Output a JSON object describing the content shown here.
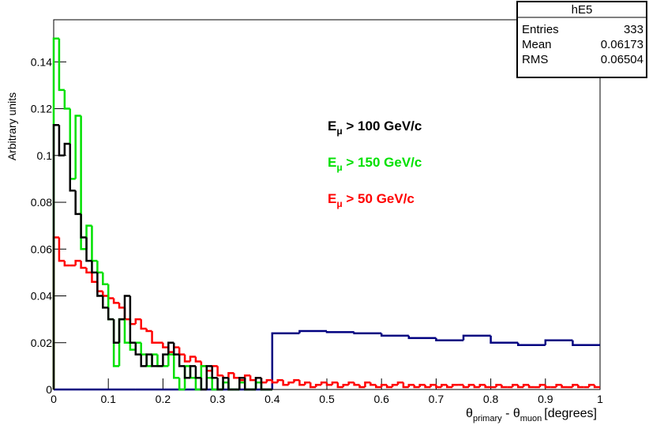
{
  "chart_data": {
    "type": "histogram",
    "y_label": "Arbitrary units",
    "x_label": {
      "theta1": "θ",
      "sub1": "primary",
      "mid": " - θ",
      "sub2": "muon",
      "unit": "[degrees]"
    },
    "xlim": [
      0,
      1
    ],
    "xticks": [
      0,
      0.1,
      0.2,
      0.3,
      0.4,
      0.5,
      0.6,
      0.7,
      0.8,
      0.9,
      1
    ],
    "ylim": [
      0,
      0.158
    ],
    "yticks": [
      0,
      0.02,
      0.04,
      0.06,
      0.08,
      0.1,
      0.12,
      0.14
    ],
    "stats": {
      "title": "hE5",
      "rows": [
        [
          "Entries",
          "333"
        ],
        [
          "Mean",
          "0.06173"
        ],
        [
          "RMS",
          "0.06504"
        ]
      ]
    },
    "legend": [
      {
        "main": "E",
        "sub": "μ",
        "rest": " > 100 GeV/c",
        "color": "#000000"
      },
      {
        "main": "E",
        "sub": "μ",
        "rest": " > 150 GeV/c",
        "color": "#00e000"
      },
      {
        "main": "E",
        "sub": "μ",
        "rest": " > 50 GeV/c",
        "color": "#ff0000"
      }
    ],
    "series": [
      {
        "color": "#000080",
        "bins": [
          0,
          0.05,
          0.1,
          0.15,
          0.2,
          0.25,
          0.3,
          0.35,
          0.4,
          0.45,
          0.5,
          0.55,
          0.6,
          0.65,
          0.7,
          0.75,
          0.8,
          0.85,
          0.9,
          0.95,
          1
        ],
        "values": [
          0,
          0,
          0,
          0,
          0,
          0,
          0,
          0,
          0.024,
          0.025,
          0.0245,
          0.024,
          0.023,
          0.022,
          0.021,
          0.023,
          0.02,
          0.019,
          0.021,
          0.019
        ]
      },
      {
        "color": "#ff0000",
        "bins": [
          0,
          0.01,
          0.02,
          0.03,
          0.04,
          0.05,
          0.06,
          0.07,
          0.08,
          0.09,
          0.1,
          0.11,
          0.12,
          0.13,
          0.14,
          0.15,
          0.16,
          0.17,
          0.18,
          0.19,
          0.2,
          0.21,
          0.22,
          0.23,
          0.24,
          0.25,
          0.26,
          0.27,
          0.28,
          0.29,
          0.3,
          0.31,
          0.32,
          0.33,
          0.34,
          0.35,
          0.36,
          0.37,
          0.38,
          0.39,
          0.4,
          0.41,
          0.42,
          0.43,
          0.44,
          0.45,
          0.46,
          0.47,
          0.48,
          0.49,
          0.5,
          0.51,
          0.52,
          0.53,
          0.54,
          0.55,
          0.56,
          0.57,
          0.58,
          0.59,
          0.6,
          0.61,
          0.62,
          0.63,
          0.64,
          0.65,
          0.66,
          0.67,
          0.68,
          0.69,
          0.7,
          0.71,
          0.72,
          0.73,
          0.74,
          0.75,
          0.76,
          0.77,
          0.78,
          0.79,
          0.8,
          0.81,
          0.82,
          0.83,
          0.84,
          0.85,
          0.86,
          0.87,
          0.88,
          0.89,
          0.9,
          0.91,
          0.92,
          0.93,
          0.94,
          0.95,
          0.96,
          0.97,
          0.98,
          0.99,
          1
        ],
        "values": [
          0.065,
          0.055,
          0.053,
          0.053,
          0.055,
          0.052,
          0.05,
          0.046,
          0.042,
          0.04,
          0.039,
          0.037,
          0.035,
          0.03,
          0.028,
          0.03,
          0.026,
          0.025,
          0.02,
          0.02,
          0.018,
          0.016,
          0.018,
          0.015,
          0.012,
          0.014,
          0.012,
          0.01,
          0.008,
          0.01,
          0.006,
          0.005,
          0.007,
          0.005,
          0.004,
          0.006,
          0.004,
          0.005,
          0.003,
          0.004,
          0.003,
          0.004,
          0.002,
          0.003,
          0.004,
          0.002,
          0.003,
          0.001,
          0.002,
          0.003,
          0.002,
          0.003,
          0.001,
          0.002,
          0.003,
          0.002,
          0.001,
          0.003,
          0.002,
          0.001,
          0.002,
          0.001,
          0.002,
          0.003,
          0.001,
          0.002,
          0.001,
          0.002,
          0.001,
          0.002,
          0.001,
          0.002,
          0.001,
          0.002,
          0.002,
          0.001,
          0.002,
          0.001,
          0.002,
          0.001,
          0.001,
          0.002,
          0.001,
          0.001,
          0.002,
          0.001,
          0.002,
          0.001,
          0.001,
          0.002,
          0.001,
          0.001,
          0.002,
          0.001,
          0.001,
          0.002,
          0.001,
          0.001,
          0.002,
          0.001
        ]
      },
      {
        "color": "#00e000",
        "bins": [
          0,
          0.01,
          0.02,
          0.03,
          0.04,
          0.05,
          0.06,
          0.07,
          0.08,
          0.09,
          0.1,
          0.11,
          0.12,
          0.13,
          0.14,
          0.15,
          0.16,
          0.17,
          0.18,
          0.19,
          0.2,
          0.21,
          0.22,
          0.23,
          0.24,
          0.25,
          0.26,
          0.27,
          0.28,
          0.29,
          0.3,
          0.31,
          0.32,
          0.33,
          0.34,
          0.35,
          0.36,
          0.37,
          0.38,
          0.39,
          0.4
        ],
        "values": [
          0.15,
          0.128,
          0.12,
          0.09,
          0.117,
          0.06,
          0.07,
          0.055,
          0.05,
          0.045,
          0.03,
          0.01,
          0.03,
          0.02,
          0.017,
          0.02,
          0.015,
          0.01,
          0.015,
          0.01,
          0.01,
          0.015,
          0.005,
          0,
          0.01,
          0.005,
          0,
          0.01,
          0.005,
          0,
          0,
          0.003,
          0,
          0,
          0.003,
          0,
          0,
          0.003,
          0,
          0
        ]
      },
      {
        "color": "#000000",
        "bins": [
          0,
          0.01,
          0.02,
          0.03,
          0.04,
          0.05,
          0.06,
          0.07,
          0.08,
          0.09,
          0.1,
          0.11,
          0.12,
          0.13,
          0.14,
          0.15,
          0.16,
          0.17,
          0.18,
          0.19,
          0.2,
          0.21,
          0.22,
          0.23,
          0.24,
          0.25,
          0.26,
          0.27,
          0.28,
          0.29,
          0.3,
          0.31,
          0.32,
          0.33,
          0.34,
          0.35,
          0.36,
          0.37,
          0.38,
          0.39,
          0.4
        ],
        "values": [
          0.113,
          0.1,
          0.105,
          0.085,
          0.075,
          0.065,
          0.055,
          0.05,
          0.04,
          0.035,
          0.03,
          0.02,
          0.03,
          0.04,
          0.02,
          0.015,
          0.01,
          0.015,
          0.01,
          0.01,
          0.015,
          0.02,
          0.015,
          0.01,
          0.005,
          0.01,
          0.005,
          0,
          0.01,
          0.005,
          0,
          0.005,
          0,
          0,
          0.005,
          0,
          0,
          0.005,
          0,
          0
        ]
      }
    ]
  }
}
